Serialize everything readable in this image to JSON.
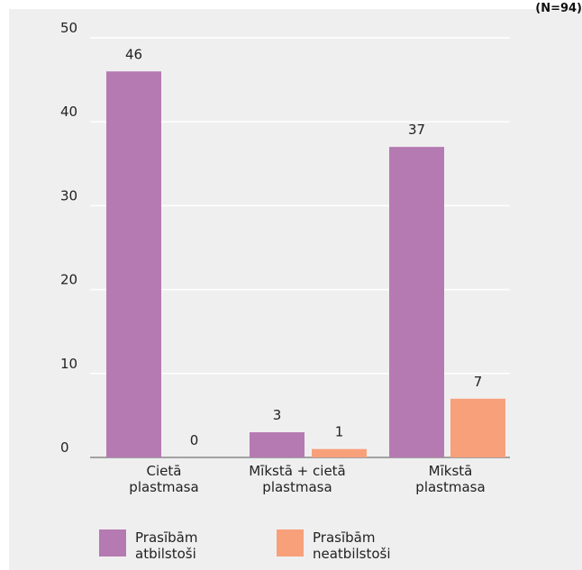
{
  "note": "(N=94)",
  "chart_data": {
    "type": "bar",
    "categories": [
      [
        "Cietā",
        "plastmasa"
      ],
      [
        "Mīkstā + cietā",
        "plastmasa"
      ],
      [
        "Mīkstā",
        "plastmasa"
      ]
    ],
    "series": [
      {
        "name": "Prasībām atbilstoši",
        "values": [
          46,
          3,
          37
        ],
        "color": "#b57ab1",
        "legend_lines": [
          "Prasībām",
          "atbilstoši"
        ]
      },
      {
        "name": "Prasībām neatbilstoši",
        "values": [
          0,
          1,
          7
        ],
        "color": "#f7a07a",
        "legend_lines": [
          "Prasībām",
          "neatbilstoši"
        ]
      }
    ],
    "yticks": [
      0,
      10,
      20,
      30,
      40,
      50
    ],
    "ylim": [
      0,
      50
    ],
    "grid": true,
    "legend_position": "bottom"
  }
}
